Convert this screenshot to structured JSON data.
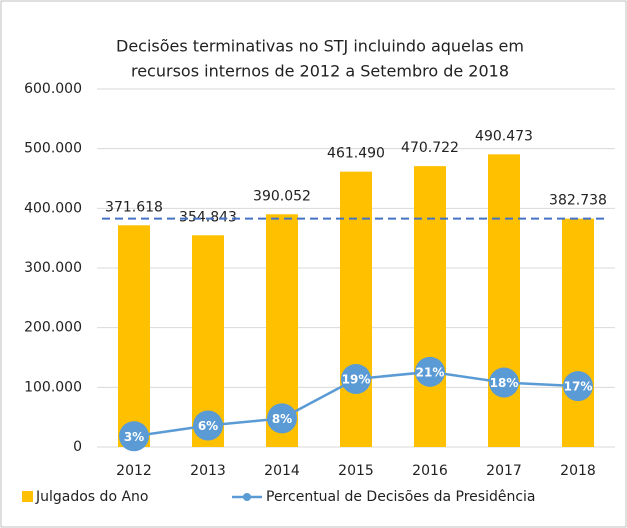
{
  "chart_data": {
    "type": "bar",
    "title": [
      "Decisões terminativas no STJ incluindo aquelas em",
      "recursos internos de 2012 a Setembro de 2018"
    ],
    "categories": [
      "2012",
      "2013",
      "2014",
      "2015",
      "2016",
      "2017",
      "2018"
    ],
    "series": [
      {
        "name": "Julgados do Ano",
        "type": "bar",
        "color": "#ffc000",
        "values": [
          371618,
          354843,
          390052,
          461490,
          470722,
          490473,
          382738
        ],
        "value_labels": [
          "371.618",
          "354.843",
          "390.052",
          "461.490",
          "470.722",
          "490.473",
          "382.738"
        ]
      },
      {
        "name": "Percentual de Decisões da Presidência",
        "type": "line",
        "color": "#5b9bd5",
        "axis": "y2",
        "values": [
          3,
          6,
          8,
          19,
          21,
          18,
          17
        ],
        "value_labels": [
          "3%",
          "6%",
          "8%",
          "19%",
          "21%",
          "18%",
          "17%"
        ]
      }
    ],
    "reference_line": {
      "value": 382738,
      "color": "#4472c4"
    },
    "ylim": [
      0,
      600000
    ],
    "yticks": [
      0,
      {
        "value": 100000,
        "label": "100.000"
      },
      {
        "value": 200000,
        "label": "200.000"
      },
      {
        "value": 300000,
        "label": "300.000"
      },
      {
        "value": 400000,
        "label": "400.000"
      },
      {
        "value": 500000,
        "label": "500.000"
      },
      {
        "value": 600000,
        "label": "600.000"
      }
    ],
    "y2lim": [
      0,
      100
    ],
    "grid": true,
    "legend": "bottom"
  }
}
